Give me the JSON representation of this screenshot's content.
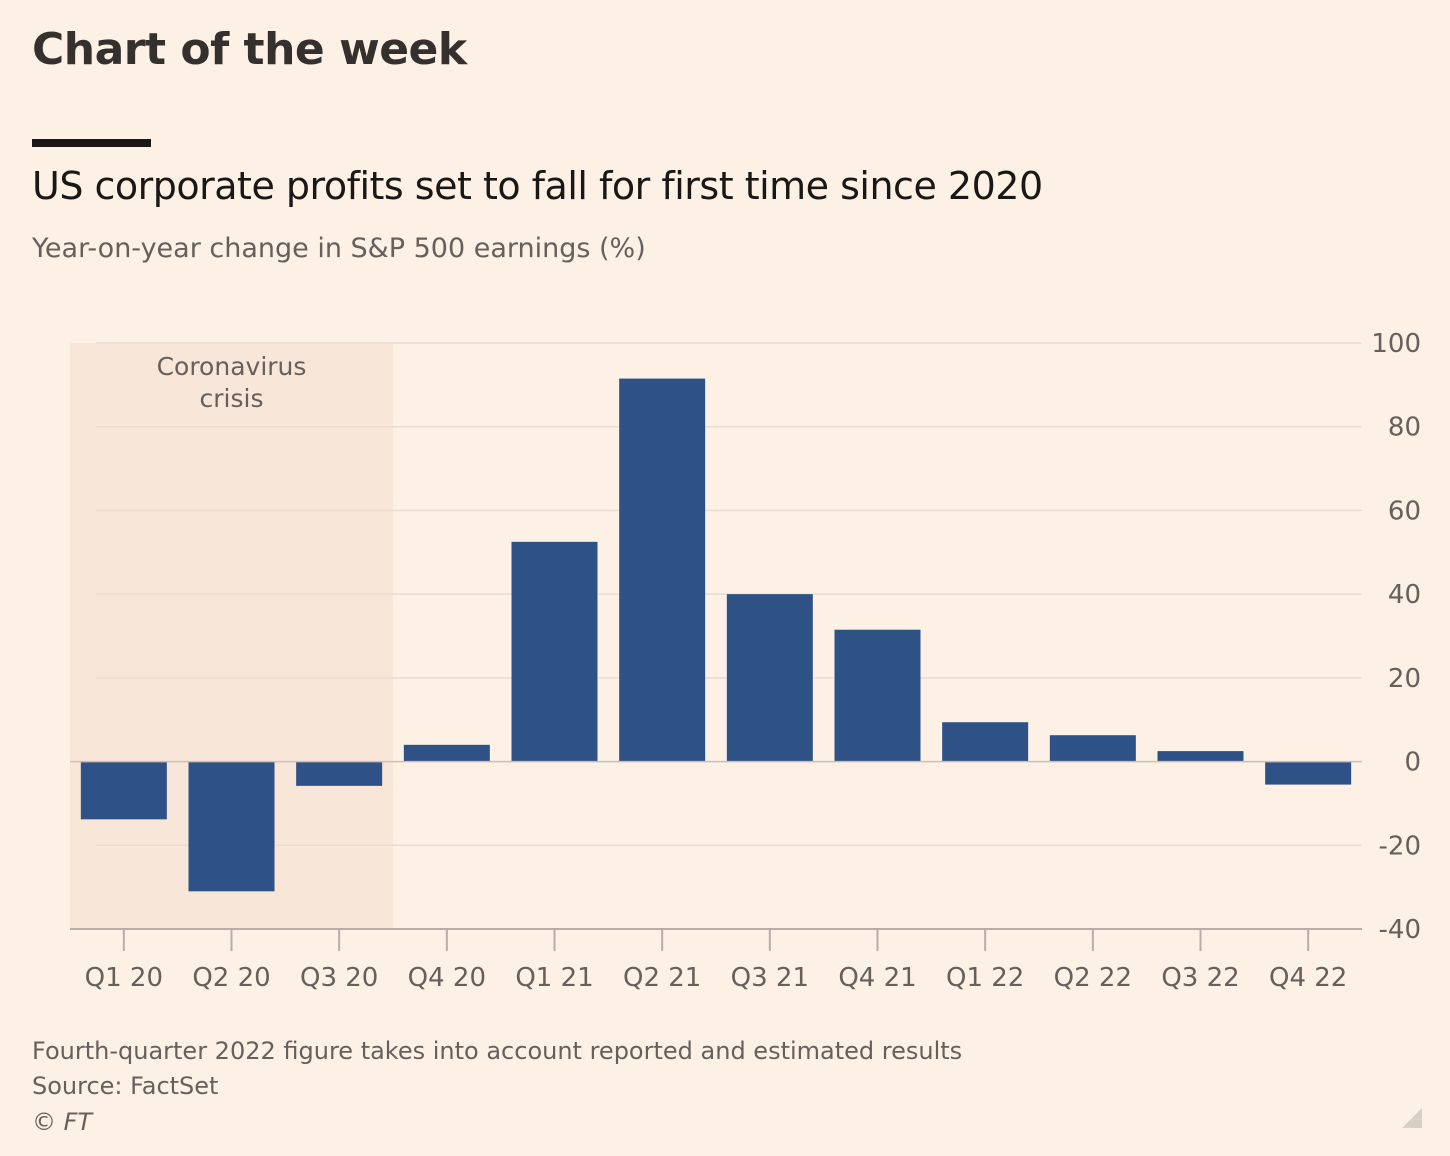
{
  "header": {
    "title": "Chart of the week"
  },
  "chart_data": {
    "type": "bar",
    "title": "US corporate profits set to fall for first time since 2020",
    "subtitle": "Year-on-year change in S&P 500 earnings (%)",
    "categories": [
      "Q1 20",
      "Q2 20",
      "Q3 20",
      "Q4 20",
      "Q1 21",
      "Q2 21",
      "Q3 21",
      "Q4 21",
      "Q1 22",
      "Q2 22",
      "Q3 22",
      "Q4 22"
    ],
    "values": [
      -13.8,
      -31.0,
      -5.8,
      4.0,
      52.5,
      91.5,
      40.0,
      31.5,
      9.4,
      6.3,
      2.5,
      -5.5
    ],
    "ylim": [
      -40,
      100
    ],
    "yticks": [
      -40,
      -20,
      0,
      20,
      40,
      60,
      80,
      100
    ],
    "ytick_labels": [
      "-40",
      "-20",
      "0",
      "20",
      "40",
      "60",
      "80",
      "100"
    ],
    "xlabel": "",
    "ylabel": "",
    "grid": true,
    "y_axis_position": "right",
    "bar_color": "#2e5285",
    "shaded_region": {
      "label_lines": [
        "Coronavirus",
        "crisis"
      ],
      "from_category": "Q1 20",
      "to_category": "Q3 20",
      "color": "#f8e6d8"
    }
  },
  "footer": {
    "note": "Fourth-quarter 2022 figure takes into account reported and estimated results",
    "source": "Source: FactSet",
    "copyright": "© FT"
  },
  "colors": {
    "background": "#fdf1e6",
    "grid": "#e9ddd3",
    "axis_text": "#66605c"
  }
}
